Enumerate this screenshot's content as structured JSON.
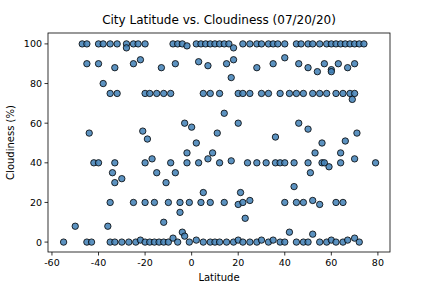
{
  "chart_data": {
    "type": "scatter",
    "title": "City Latitude vs. Cloudiness (07/20/20)",
    "x_label": "Latitude",
    "y_label": "Cloudiness (%)",
    "color": "#3f7fb5",
    "marker": "circle",
    "grid": false,
    "xlim": [
      -61.7,
      85.2
    ],
    "ylim": [
      -5,
      105.5
    ],
    "xticks": [
      -60,
      -40,
      -20,
      0,
      20,
      40,
      60,
      80
    ],
    "yticks": [
      0,
      20,
      40,
      60,
      80,
      100
    ],
    "x": [
      -55,
      -45,
      -43,
      -35,
      -33,
      -30,
      -27,
      -24,
      -22,
      -20,
      -18,
      -16,
      -14,
      -12,
      -10,
      -8,
      -6,
      -4,
      -3,
      -1,
      2,
      5,
      8,
      10,
      12,
      15,
      18,
      20,
      22,
      25,
      28,
      30,
      33,
      35,
      38,
      40,
      42,
      45,
      48,
      50,
      52,
      55,
      58,
      60,
      62,
      65,
      67,
      70,
      72,
      -47,
      -45,
      -40,
      -38,
      -35,
      -32,
      -28,
      -25,
      -23,
      -20,
      -8,
      -6,
      -4,
      -2,
      2,
      4,
      6,
      8,
      10,
      12,
      14,
      16,
      18,
      22,
      25,
      28,
      30,
      33,
      35,
      37,
      40,
      45,
      47,
      50,
      52,
      55,
      58,
      60,
      62,
      64,
      66,
      68,
      70,
      72,
      74,
      -35,
      -32,
      -20,
      -18,
      -15,
      -12,
      -9,
      5,
      8,
      12,
      20,
      22,
      25,
      30,
      33,
      38,
      42,
      45,
      48,
      52,
      55,
      58,
      62,
      65,
      68,
      70,
      -45,
      -40,
      -33,
      -25,
      -22,
      -13,
      -7,
      3,
      7,
      15,
      18,
      28,
      35,
      40,
      46,
      50,
      54,
      57,
      60,
      63,
      67,
      70,
      -42,
      -40,
      -33,
      -20,
      -17,
      -2,
      3,
      7,
      12,
      17,
      24,
      28,
      32,
      36,
      38,
      40,
      44,
      50,
      56,
      59,
      64,
      70,
      79,
      -35,
      -25,
      -20,
      -16,
      -10,
      -5,
      -1,
      4,
      8,
      14,
      20,
      22,
      25,
      40,
      45,
      48,
      52,
      55,
      62,
      65,
      -50,
      -44,
      -38,
      -36,
      -34,
      -33,
      -30,
      -28,
      -21,
      -19,
      -15,
      -12,
      -11,
      -9,
      -7,
      -5,
      -3,
      -2,
      0,
      2,
      5,
      9,
      11,
      14,
      17,
      20,
      21,
      23,
      36,
      44,
      46,
      50,
      51,
      53,
      56,
      57,
      60,
      64,
      66,
      69,
      71
    ],
    "values": [
      0,
      0,
      0,
      0,
      0,
      0,
      0,
      0,
      1,
      0,
      0,
      0,
      0,
      0,
      0,
      2,
      0,
      5,
      3,
      0,
      1,
      0,
      0,
      0,
      0,
      0,
      0,
      1,
      0,
      0,
      0,
      1,
      0,
      1,
      0,
      0,
      5,
      0,
      0,
      0,
      4,
      0,
      0,
      1,
      0,
      0,
      1,
      2,
      0,
      100,
      100,
      100,
      100,
      100,
      100,
      100,
      100,
      100,
      100,
      100,
      100,
      100,
      99,
      100,
      100,
      100,
      100,
      100,
      100,
      100,
      100,
      98,
      100,
      100,
      100,
      100,
      100,
      100,
      100,
      100,
      100,
      100,
      100,
      100,
      100,
      100,
      100,
      100,
      100,
      100,
      100,
      100,
      100,
      100,
      75,
      75,
      75,
      75,
      75,
      75,
      75,
      75,
      75,
      75,
      75,
      75,
      75,
      75,
      75,
      75,
      75,
      75,
      75,
      75,
      75,
      75,
      75,
      75,
      75,
      75,
      90,
      90,
      88,
      90,
      92,
      88,
      90,
      91,
      89,
      90,
      92,
      88,
      90,
      93,
      90,
      88,
      86,
      90,
      87,
      90,
      88,
      90,
      40,
      40,
      40,
      40,
      42,
      40,
      40,
      42,
      40,
      41,
      40,
      40,
      40,
      40,
      40,
      40,
      40,
      40,
      40,
      38,
      40,
      42,
      40,
      20,
      20,
      20,
      20,
      20,
      20,
      20,
      20,
      20,
      20,
      19,
      20,
      21,
      20,
      20,
      20,
      21,
      19,
      20,
      20,
      8,
      55,
      80,
      8,
      35,
      30,
      32,
      98,
      56,
      52,
      35,
      10,
      30,
      40,
      35,
      15,
      60,
      45,
      58,
      50,
      25,
      45,
      55,
      65,
      83,
      60,
      25,
      12,
      53,
      28,
      60,
      57,
      35,
      45,
      50,
      40,
      86,
      45,
      51,
      72,
      55
    ]
  }
}
